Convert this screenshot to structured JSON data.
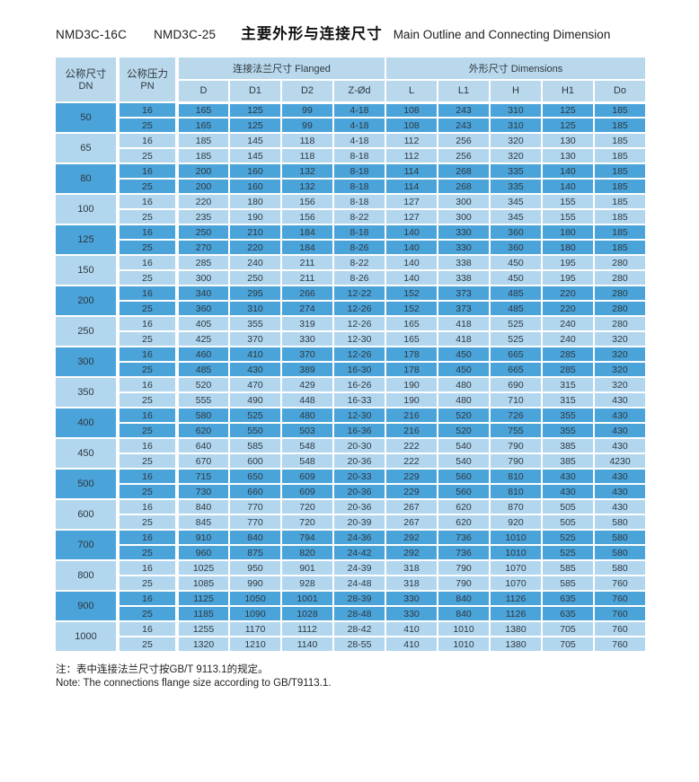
{
  "header": {
    "model_1": "NMD3C-16C",
    "model_2": "NMD3C-25",
    "title_zh": "主要外形与连接尺寸",
    "title_en": "Main Outline and Connecting Dimension"
  },
  "colors": {
    "row_dark": "#4aa3d9",
    "row_light": "#b1d6ee",
    "header_bg": "#b9d8ec",
    "grid_border": "#ffffff",
    "text": "#2e3840"
  },
  "table": {
    "headers": {
      "dn_zh": "公称尺寸",
      "dn_en": "DN",
      "pn_zh": "公称压力",
      "pn_en": "PN",
      "flanged_group": "连接法兰尺寸 Flanged",
      "dimensions_group": "外形尺寸 Dimensions",
      "sub_cols": [
        "D",
        "D1",
        "D2",
        "Z-Ød",
        "L",
        "L1",
        "H",
        "H1",
        "Do"
      ]
    },
    "groups": [
      {
        "dn": "50",
        "rows": [
          {
            "pn": "16",
            "values": [
              "165",
              "125",
              "99",
              "4-18",
              "108",
              "243",
              "310",
              "125",
              "185"
            ]
          },
          {
            "pn": "25",
            "values": [
              "165",
              "125",
              "99",
              "4-18",
              "108",
              "243",
              "310",
              "125",
              "185"
            ]
          }
        ]
      },
      {
        "dn": "65",
        "rows": [
          {
            "pn": "16",
            "values": [
              "185",
              "145",
              "118",
              "4-18",
              "112",
              "256",
              "320",
              "130",
              "185"
            ]
          },
          {
            "pn": "25",
            "values": [
              "185",
              "145",
              "118",
              "8-18",
              "112",
              "256",
              "320",
              "130",
              "185"
            ]
          }
        ]
      },
      {
        "dn": "80",
        "rows": [
          {
            "pn": "16",
            "values": [
              "200",
              "160",
              "132",
              "8-18",
              "114",
              "268",
              "335",
              "140",
              "185"
            ]
          },
          {
            "pn": "25",
            "values": [
              "200",
              "160",
              "132",
              "8-18",
              "114",
              "268",
              "335",
              "140",
              "185"
            ]
          }
        ]
      },
      {
        "dn": "100",
        "rows": [
          {
            "pn": "16",
            "values": [
              "220",
              "180",
              "156",
              "8-18",
              "127",
              "300",
              "345",
              "155",
              "185"
            ]
          },
          {
            "pn": "25",
            "values": [
              "235",
              "190",
              "156",
              "8-22",
              "127",
              "300",
              "345",
              "155",
              "185"
            ]
          }
        ]
      },
      {
        "dn": "125",
        "rows": [
          {
            "pn": "16",
            "values": [
              "250",
              "210",
              "184",
              "8-18",
              "140",
              "330",
              "360",
              "180",
              "185"
            ]
          },
          {
            "pn": "25",
            "values": [
              "270",
              "220",
              "184",
              "8-26",
              "140",
              "330",
              "360",
              "180",
              "185"
            ]
          }
        ]
      },
      {
        "dn": "150",
        "rows": [
          {
            "pn": "16",
            "values": [
              "285",
              "240",
              "211",
              "8-22",
              "140",
              "338",
              "450",
              "195",
              "280"
            ]
          },
          {
            "pn": "25",
            "values": [
              "300",
              "250",
              "211",
              "8-26",
              "140",
              "338",
              "450",
              "195",
              "280"
            ]
          }
        ]
      },
      {
        "dn": "200",
        "rows": [
          {
            "pn": "16",
            "values": [
              "340",
              "295",
              "266",
              "12-22",
              "152",
              "373",
              "485",
              "220",
              "280"
            ]
          },
          {
            "pn": "25",
            "values": [
              "360",
              "310",
              "274",
              "12-26",
              "152",
              "373",
              "485",
              "220",
              "280"
            ]
          }
        ]
      },
      {
        "dn": "250",
        "rows": [
          {
            "pn": "16",
            "values": [
              "405",
              "355",
              "319",
              "12-26",
              "165",
              "418",
              "525",
              "240",
              "280"
            ]
          },
          {
            "pn": "25",
            "values": [
              "425",
              "370",
              "330",
              "12-30",
              "165",
              "418",
              "525",
              "240",
              "320"
            ]
          }
        ]
      },
      {
        "dn": "300",
        "rows": [
          {
            "pn": "16",
            "values": [
              "460",
              "410",
              "370",
              "12-26",
              "178",
              "450",
              "665",
              "285",
              "320"
            ]
          },
          {
            "pn": "25",
            "values": [
              "485",
              "430",
              "389",
              "16-30",
              "178",
              "450",
              "665",
              "285",
              "320"
            ]
          }
        ]
      },
      {
        "dn": "350",
        "rows": [
          {
            "pn": "16",
            "values": [
              "520",
              "470",
              "429",
              "16-26",
              "190",
              "480",
              "690",
              "315",
              "320"
            ]
          },
          {
            "pn": "25",
            "values": [
              "555",
              "490",
              "448",
              "16-33",
              "190",
              "480",
              "710",
              "315",
              "430"
            ]
          }
        ]
      },
      {
        "dn": "400",
        "rows": [
          {
            "pn": "16",
            "values": [
              "580",
              "525",
              "480",
              "12-30",
              "216",
              "520",
              "726",
              "355",
              "430"
            ]
          },
          {
            "pn": "25",
            "values": [
              "620",
              "550",
              "503",
              "16-36",
              "216",
              "520",
              "755",
              "355",
              "430"
            ]
          }
        ]
      },
      {
        "dn": "450",
        "rows": [
          {
            "pn": "16",
            "values": [
              "640",
              "585",
              "548",
              "20-30",
              "222",
              "540",
              "790",
              "385",
              "430"
            ]
          },
          {
            "pn": "25",
            "values": [
              "670",
              "600",
              "548",
              "20-36",
              "222",
              "540",
              "790",
              "385",
              "4230"
            ]
          }
        ]
      },
      {
        "dn": "500",
        "rows": [
          {
            "pn": "16",
            "values": [
              "715",
              "650",
              "609",
              "20-33",
              "229",
              "560",
              "810",
              "430",
              "430"
            ]
          },
          {
            "pn": "25",
            "values": [
              "730",
              "660",
              "609",
              "20-36",
              "229",
              "560",
              "810",
              "430",
              "430"
            ]
          }
        ]
      },
      {
        "dn": "600",
        "rows": [
          {
            "pn": "16",
            "values": [
              "840",
              "770",
              "720",
              "20-36",
              "267",
              "620",
              "870",
              "505",
              "430"
            ]
          },
          {
            "pn": "25",
            "values": [
              "845",
              "770",
              "720",
              "20-39",
              "267",
              "620",
              "920",
              "505",
              "580"
            ]
          }
        ]
      },
      {
        "dn": "700",
        "rows": [
          {
            "pn": "16",
            "values": [
              "910",
              "840",
              "794",
              "24-36",
              "292",
              "736",
              "1010",
              "525",
              "580"
            ]
          },
          {
            "pn": "25",
            "values": [
              "960",
              "875",
              "820",
              "24-42",
              "292",
              "736",
              "1010",
              "525",
              "580"
            ]
          }
        ]
      },
      {
        "dn": "800",
        "rows": [
          {
            "pn": "16",
            "values": [
              "1025",
              "950",
              "901",
              "24-39",
              "318",
              "790",
              "1070",
              "585",
              "580"
            ]
          },
          {
            "pn": "25",
            "values": [
              "1085",
              "990",
              "928",
              "24-48",
              "318",
              "790",
              "1070",
              "585",
              "760"
            ]
          }
        ]
      },
      {
        "dn": "900",
        "rows": [
          {
            "pn": "16",
            "values": [
              "1125",
              "1050",
              "1001",
              "28-39",
              "330",
              "840",
              "1126",
              "635",
              "760"
            ]
          },
          {
            "pn": "25",
            "values": [
              "1185",
              "1090",
              "1028",
              "28-48",
              "330",
              "840",
              "1126",
              "635",
              "760"
            ]
          }
        ]
      },
      {
        "dn": "1000",
        "rows": [
          {
            "pn": "16",
            "values": [
              "1255",
              "1170",
              "1112",
              "28-42",
              "410",
              "1010",
              "1380",
              "705",
              "760"
            ]
          },
          {
            "pn": "25",
            "values": [
              "1320",
              "1210",
              "1140",
              "28-55",
              "410",
              "1010",
              "1380",
              "705",
              "760"
            ]
          }
        ]
      }
    ]
  },
  "notes": {
    "zh": "注：表中连接法兰尺寸按GB/T 9113.1的规定。",
    "en": "Note: The connections flange size according to GB/T9113.1."
  }
}
